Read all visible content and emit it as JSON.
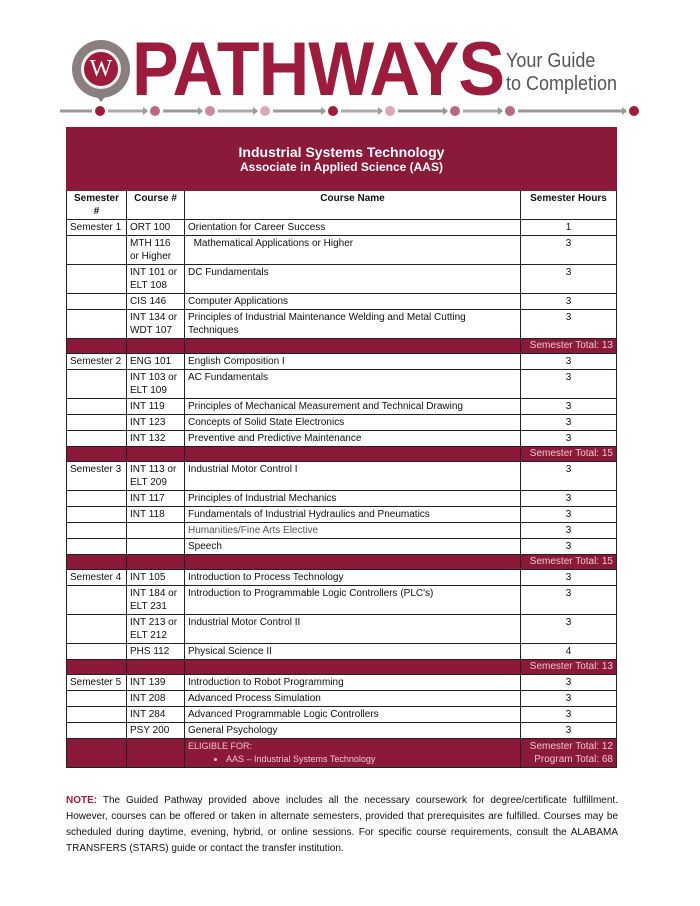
{
  "header": {
    "logo_letter": "W",
    "brand": "PATHWAYS",
    "tagline_1": "Your Guide",
    "tagline_2": "to Completion",
    "accent": "#9b1c3c"
  },
  "program": {
    "title": "Industrial Systems Technology",
    "degree": "Associate in Applied Science (AAS)"
  },
  "columns": [
    "Semester #",
    "Course #",
    "Course Name",
    "Semester Hours"
  ],
  "rows": [
    {
      "type": "single",
      "sem": "Semester 1",
      "course": "ORT 100",
      "name": "Orientation for Career Success",
      "hours": "1"
    },
    {
      "type": "double",
      "sem": "",
      "course": "MTH 116 or Higher",
      "name": "  Mathematical Applications or Higher",
      "hours": "3"
    },
    {
      "type": "double",
      "sem": "",
      "course": "INT 101 or ELT 108",
      "name": "DC Fundamentals",
      "hours": "3"
    },
    {
      "type": "single",
      "sem": "",
      "course": "CIS 146",
      "name": "Computer Applications",
      "hours": "3"
    },
    {
      "type": "double",
      "sem": "",
      "course": "INT 134 or WDT 107",
      "name": "Principles of Industrial Maintenance Welding and Metal Cutting Techniques",
      "hours": "3"
    },
    {
      "type": "total",
      "total": "Semester Total: 13"
    },
    {
      "type": "single",
      "sem": "Semester 2",
      "course": "ENG 101",
      "name": "English Composition I",
      "hours": "3"
    },
    {
      "type": "double",
      "sem": "",
      "course": "INT 103 or ELT 109",
      "name": "AC Fundamentals",
      "hours": "3"
    },
    {
      "type": "single",
      "sem": "",
      "course": "INT 119",
      "name": "Principles of Mechanical Measurement and Technical Drawing",
      "hours": "3"
    },
    {
      "type": "single",
      "sem": "",
      "course": "INT 123",
      "name": "Concepts of Solid State Electronics",
      "hours": "3"
    },
    {
      "type": "single",
      "sem": "",
      "course": "INT 132",
      "name": "Preventive and Predictive Maintenance",
      "hours": "3"
    },
    {
      "type": "total",
      "total": "Semester Total: 15"
    },
    {
      "type": "double",
      "sem": "Semester 3",
      "course": "INT 113 or ELT 209",
      "name": "Industrial Motor Control I",
      "hours": "3"
    },
    {
      "type": "single",
      "sem": "",
      "course": "INT 117",
      "name": "Principles of Industrial Mechanics",
      "hours": "3"
    },
    {
      "type": "single",
      "sem": "",
      "course": "INT 118",
      "name": "Fundamentals of Industrial Hydraulics and Pneumatics",
      "hours": "3"
    },
    {
      "type": "single",
      "sem": "",
      "course": "",
      "name": "Humanities/Fine Arts Elective",
      "hours": "3"
    },
    {
      "type": "single",
      "sem": "",
      "course": "",
      "name": "Speech",
      "hours": "3"
    },
    {
      "type": "total",
      "total": "Semester Total: 15"
    },
    {
      "type": "single",
      "sem": "Semester 4",
      "course": "INT 105",
      "name": "Introduction to Process Technology",
      "hours": "3"
    },
    {
      "type": "double",
      "sem": "",
      "course": "INT 184 or ELT 231",
      "name": "Introduction to Programmable Logic Controllers (PLC's)",
      "hours": "3"
    },
    {
      "type": "double",
      "sem": "",
      "course": "INT 213 or ELT 212",
      "name": "Industrial Motor Control II",
      "hours": "3"
    },
    {
      "type": "single",
      "sem": "",
      "course": "PHS 112",
      "name": "Physical Science II",
      "hours": "4"
    },
    {
      "type": "total",
      "total": "Semester Total: 13"
    },
    {
      "type": "single",
      "sem": "Semester 5",
      "course": "INT 139",
      "name": "Introduction to Robot Programming",
      "hours": "3"
    },
    {
      "type": "single",
      "sem": "",
      "course": "INT 208",
      "name": "Advanced Process Simulation",
      "hours": "3"
    },
    {
      "type": "single",
      "sem": "",
      "course": "INT 284",
      "name": "Advanced Programmable Logic Controllers",
      "hours": "3"
    },
    {
      "type": "single",
      "sem": "",
      "course": "PSY 200",
      "name": "General Psychology",
      "hours": "3"
    }
  ],
  "final": {
    "eligible_label": "ELIGIBLE FOR:",
    "eligible_item": "AAS  – Industrial Systems Technology",
    "semester_total": "Semester Total: 12",
    "program_total": "Program Total: 68"
  },
  "note": {
    "label": "NOTE:",
    "text": " The Guided Pathway provided above includes all the necessary coursework for degree/certificate fulfillment. However, courses can be offered or taken in alternate semesters, provided that prerequisites are fulfilled. Courses may be scheduled during daytime, evening, hybrid, or online sessions. For specific course requirements, consult the ALABAMA TRANSFERS (STARS) guide or contact the transfer institution."
  }
}
